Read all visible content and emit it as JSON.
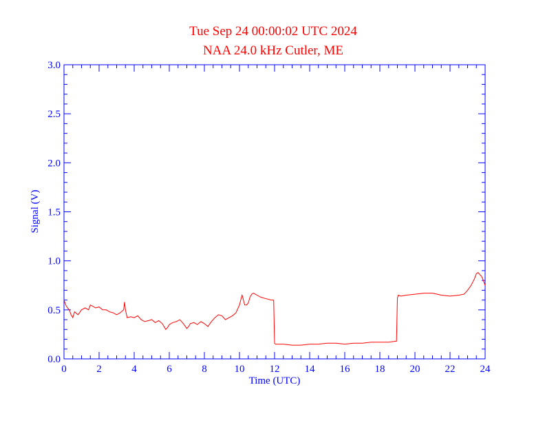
{
  "colors": {
    "title": "#ff0000",
    "axis": "#0000ff",
    "series": "#ff0000",
    "background": "#ffffff"
  },
  "chart_data": {
    "type": "line",
    "title": "Tue Sep 24 00:00:02 UTC 2024",
    "subtitle": "NAA 24.0 kHz Cutler, ME",
    "xlabel": "Time (UTC)",
    "ylabel": "Signal (V)",
    "xlim": [
      0,
      24
    ],
    "ylim": [
      0,
      3.0
    ],
    "x_ticks": [
      "0",
      "2",
      "4",
      "6",
      "8",
      "10",
      "12",
      "14",
      "16",
      "18",
      "20",
      "22",
      "24"
    ],
    "y_ticks": [
      "0.0",
      "0.5",
      "1.0",
      "1.5",
      "2.0",
      "2.5",
      "3.0"
    ],
    "grid": false,
    "series": [
      {
        "x": [
          0.0,
          0.1,
          0.2,
          0.3,
          0.4,
          0.5,
          0.6,
          0.8,
          1.0,
          1.2,
          1.4,
          1.5,
          1.6,
          1.8,
          2.0,
          2.2,
          2.4,
          2.6,
          2.8,
          3.0,
          3.2,
          3.4,
          3.45,
          3.5,
          3.6,
          3.8,
          4.0,
          4.2,
          4.4,
          4.6,
          4.8,
          5.0,
          5.2,
          5.4,
          5.6,
          5.8,
          5.9,
          6.0,
          6.2,
          6.4,
          6.6,
          6.8,
          7.0,
          7.1,
          7.2,
          7.4,
          7.6,
          7.8,
          8.0,
          8.2,
          8.4,
          8.6,
          8.8,
          9.0,
          9.2,
          9.4,
          9.6,
          9.8,
          10.0,
          10.1,
          10.15,
          10.2,
          10.25,
          10.3,
          10.4,
          10.5,
          10.6,
          10.7,
          10.8,
          11.0,
          11.2,
          11.4,
          11.6,
          11.8,
          11.95,
          12.0,
          12.05,
          12.5,
          13.0,
          13.5,
          14.0,
          14.5,
          15.0,
          15.5,
          16.0,
          16.5,
          17.0,
          17.5,
          18.0,
          18.5,
          18.9,
          18.95,
          19.0,
          19.05,
          19.2,
          19.5,
          20.0,
          20.5,
          21.0,
          21.5,
          22.0,
          22.5,
          22.8,
          23.0,
          23.2,
          23.4,
          23.5,
          23.6,
          23.7,
          23.8,
          23.9,
          24.0
        ],
        "y": [
          0.6,
          0.55,
          0.52,
          0.5,
          0.45,
          0.42,
          0.48,
          0.45,
          0.5,
          0.52,
          0.5,
          0.55,
          0.54,
          0.52,
          0.53,
          0.5,
          0.5,
          0.48,
          0.47,
          0.45,
          0.47,
          0.5,
          0.58,
          0.5,
          0.42,
          0.43,
          0.42,
          0.44,
          0.4,
          0.38,
          0.39,
          0.4,
          0.37,
          0.39,
          0.36,
          0.3,
          0.32,
          0.35,
          0.37,
          0.38,
          0.4,
          0.36,
          0.31,
          0.33,
          0.36,
          0.37,
          0.35,
          0.38,
          0.36,
          0.33,
          0.38,
          0.42,
          0.45,
          0.44,
          0.4,
          0.42,
          0.44,
          0.47,
          0.55,
          0.62,
          0.65,
          0.62,
          0.58,
          0.55,
          0.55,
          0.57,
          0.63,
          0.66,
          0.67,
          0.65,
          0.63,
          0.62,
          0.61,
          0.6,
          0.6,
          0.16,
          0.15,
          0.15,
          0.14,
          0.14,
          0.15,
          0.15,
          0.16,
          0.16,
          0.15,
          0.16,
          0.16,
          0.17,
          0.17,
          0.17,
          0.18,
          0.18,
          0.62,
          0.65,
          0.64,
          0.65,
          0.66,
          0.67,
          0.67,
          0.65,
          0.64,
          0.65,
          0.66,
          0.7,
          0.75,
          0.82,
          0.87,
          0.88,
          0.86,
          0.84,
          0.8,
          0.75
        ]
      }
    ]
  }
}
